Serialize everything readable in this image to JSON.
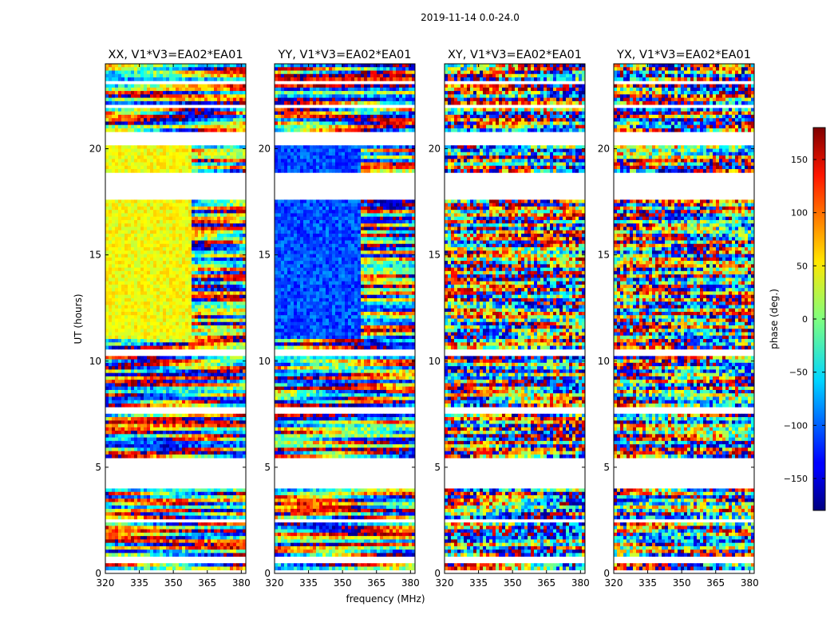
{
  "figure": {
    "suptitle": "2019-11-14 0.0-24.0",
    "xlabel": "frequency (MHz)",
    "ylabel": "UT (hours)"
  },
  "chart_data": {
    "type": "heatmap",
    "title": "2019-11-14 0.0-24.0",
    "xlabel": "frequency (MHz)",
    "ylabel": "UT (hours)",
    "xlim": [
      320,
      382
    ],
    "ylim": [
      0,
      24
    ],
    "xticks": [
      320,
      335,
      350,
      365,
      380
    ],
    "yticks": [
      0,
      5,
      10,
      15,
      20
    ],
    "colormap": "jet",
    "colorbar": {
      "label": "phase (deg.)",
      "range": [
        -180,
        180
      ],
      "ticks": [
        -150,
        -100,
        -50,
        0,
        50,
        100,
        150
      ]
    },
    "gaps_hours": [
      [
        0.0,
        0.1
      ],
      [
        0.5,
        0.85
      ],
      [
        2.4,
        2.6
      ],
      [
        4.0,
        5.5
      ],
      [
        7.6,
        7.9
      ],
      [
        10.3,
        10.6
      ],
      [
        17.6,
        18.9
      ],
      [
        20.2,
        20.8
      ],
      [
        22.0,
        22.1
      ],
      [
        23.1,
        23.2
      ]
    ],
    "panels": [
      {
        "title": "XX, V1*V3=EA02*EA01",
        "pattern": "yellow-dominant"
      },
      {
        "title": "YY, V1*V3=EA02*EA01",
        "pattern": "blue-dominant"
      },
      {
        "title": "XY, V1*V3=EA02*EA01",
        "pattern": "noisy-fringes"
      },
      {
        "title": "YX, V1*V3=EA02*EA01",
        "pattern": "noisy-fringes"
      }
    ]
  }
}
